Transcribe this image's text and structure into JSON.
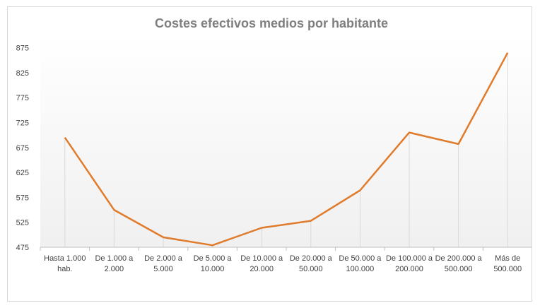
{
  "chart_data": {
    "type": "line",
    "title": "Costes efectivos medios por habitante",
    "xlabel": "",
    "ylabel": "",
    "categories": [
      [
        "Hasta 1.000",
        "hab."
      ],
      [
        "De 1.000 a",
        "2.000"
      ],
      [
        "De 2.000 a",
        "5.000"
      ],
      [
        "De 5.000 a",
        "10.000"
      ],
      [
        "De 10.000 a",
        "20.000"
      ],
      [
        "De 20.000 a",
        "50.000"
      ],
      [
        "De 50.000 a",
        "100.000"
      ],
      [
        "De 100.000 a",
        "200.000"
      ],
      [
        "De 200.000 a",
        "500.000"
      ],
      [
        "Más de",
        "500.000"
      ]
    ],
    "series": [
      {
        "values": [
          695,
          550,
          495,
          479,
          514,
          528,
          589,
          705,
          682,
          865
        ],
        "color": "#e07b2c"
      }
    ],
    "ylim": [
      475,
      900
    ],
    "yticks": [
      475,
      525,
      575,
      625,
      675,
      725,
      775,
      825,
      875
    ],
    "grid": {
      "horizontal": false,
      "vertical_drop_lines": true
    },
    "legend": "none",
    "colors": {
      "line": "#e07b2c",
      "axis": "#bfbfbf",
      "droplines": "#d9d9d9",
      "text": "#404040",
      "title": "#7f7f7f"
    }
  }
}
